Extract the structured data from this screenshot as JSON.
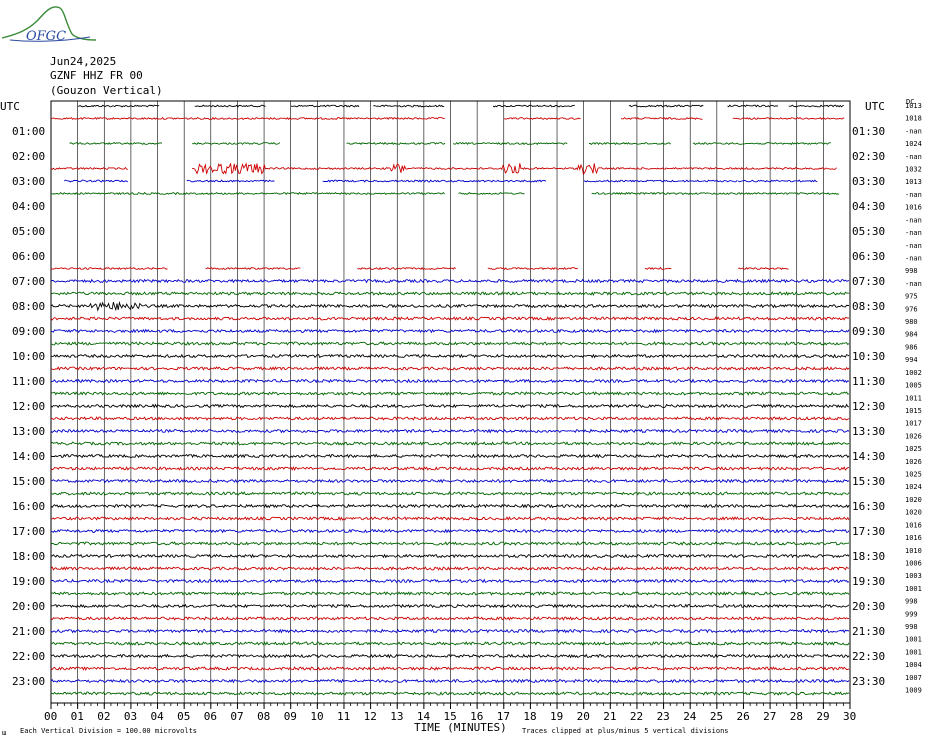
{
  "logo": {
    "text": "OFGC"
  },
  "header": {
    "date": "Jun24,2025",
    "station": "GZNF HHZ FR 00",
    "component": "(Gouzon Vertical)"
  },
  "axis": {
    "left_header": "UTC",
    "right_header": "UTC",
    "xlabel": "TIME (MINUTES)",
    "footer_left": "Each Vertical Division = 100.00 microvolts",
    "footer_right": "Traces clipped at plus/minus 5 vertical divisions",
    "corner_mark": "ɯ",
    "dc_header": "DC"
  },
  "colors": {
    "black": "#000000",
    "red": "#cc0000",
    "blue": "#0000cc",
    "green": "#006600",
    "grid": "#000000"
  },
  "chart_data": {
    "type": "line",
    "title": "GZNF HHZ FR 00 (Gouzon Vertical)",
    "xlabel": "TIME (MINUTES)",
    "xlim": [
      0,
      30
    ],
    "x_ticks": [
      "00",
      "01",
      "02",
      "03",
      "04",
      "05",
      "06",
      "07",
      "08",
      "09",
      "10",
      "11",
      "12",
      "13",
      "14",
      "15",
      "16",
      "17",
      "18",
      "19",
      "20",
      "21",
      "22",
      "23",
      "24",
      "25",
      "26",
      "27",
      "28",
      "29",
      "30"
    ],
    "left_labels": [
      "01:00",
      "02:00",
      "03:00",
      "04:00",
      "05:00",
      "06:00",
      "07:00",
      "08:00",
      "09:00",
      "10:00",
      "11:00",
      "12:00",
      "13:00",
      "14:00",
      "15:00",
      "16:00",
      "17:00",
      "18:00",
      "19:00",
      "20:00",
      "21:00",
      "22:00",
      "23:00"
    ],
    "right_labels": [
      "01:30",
      "02:30",
      "03:30",
      "04:30",
      "05:30",
      "06:30",
      "07:30",
      "08:30",
      "09:30",
      "10:30",
      "11:30",
      "12:30",
      "13:30",
      "14:30",
      "15:30",
      "16:30",
      "17:30",
      "18:30",
      "19:30",
      "20:30",
      "21:30",
      "22:30",
      "23:30"
    ],
    "right_values": [
      "1013",
      "1018",
      "-nan",
      "1024",
      "-nan",
      "1032",
      "1013",
      "-nan",
      "1016",
      "-nan",
      "-nan",
      "-nan",
      "-nan",
      "998",
      "-nan",
      "975",
      "976",
      "980",
      "984",
      "986",
      "994",
      "1002",
      "1005",
      "1011",
      "1015",
      "1017",
      "1026",
      "1025",
      "1026",
      "1025",
      "1024",
      "1020",
      "1020",
      "1016",
      "1016",
      "1010",
      "1006",
      "1003",
      "1001",
      "998",
      "999",
      "998",
      "1001",
      "1001",
      "1004",
      "1007",
      "1009"
    ],
    "trace_colors": [
      "black",
      "red",
      "blue",
      "green"
    ],
    "segments": [
      [
        [
          1,
          4.1
        ],
        [
          5.4,
          8.1
        ],
        [
          9,
          11.6
        ],
        [
          12.1,
          14.8
        ],
        [
          16.6,
          19.7
        ],
        [
          21.7,
          24.5
        ],
        [
          25.4,
          27.3
        ],
        [
          27.7,
          29.8
        ]
      ],
      [
        [
          0,
          14.8
        ],
        [
          17,
          19.9
        ],
        [
          21.4,
          24.5
        ],
        [
          25.6,
          29.8
        ]
      ],
      [],
      [
        [
          0.7,
          4.2
        ],
        [
          5.3,
          8.6
        ],
        [
          11.1,
          14.8
        ],
        [
          15.1,
          19.4
        ],
        [
          20.2,
          23.3
        ],
        [
          24.1,
          29.3
        ]
      ],
      [],
      [
        [
          0,
          2.9
        ],
        [
          5.3,
          29.5
        ]
      ],
      [
        [
          0.5,
          2.9
        ],
        [
          5.1,
          8.4
        ],
        [
          10.2,
          18.6
        ],
        [
          20,
          25.8
        ],
        [
          25.8,
          28.8
        ]
      ],
      [
        [
          0,
          14.8
        ],
        [
          15.3,
          17.8
        ],
        [
          20.3,
          29.6
        ]
      ],
      [],
      [],
      [],
      [],
      [],
      [
        [
          0,
          4.4
        ],
        [
          5.8,
          9.4
        ],
        [
          11.5,
          15.2
        ],
        [
          16.4,
          19.8
        ],
        [
          22.3,
          23.3
        ],
        [
          25.8,
          27.7
        ]
      ]
    ],
    "full_traces_from_row": 14,
    "total_rows": 48
  }
}
